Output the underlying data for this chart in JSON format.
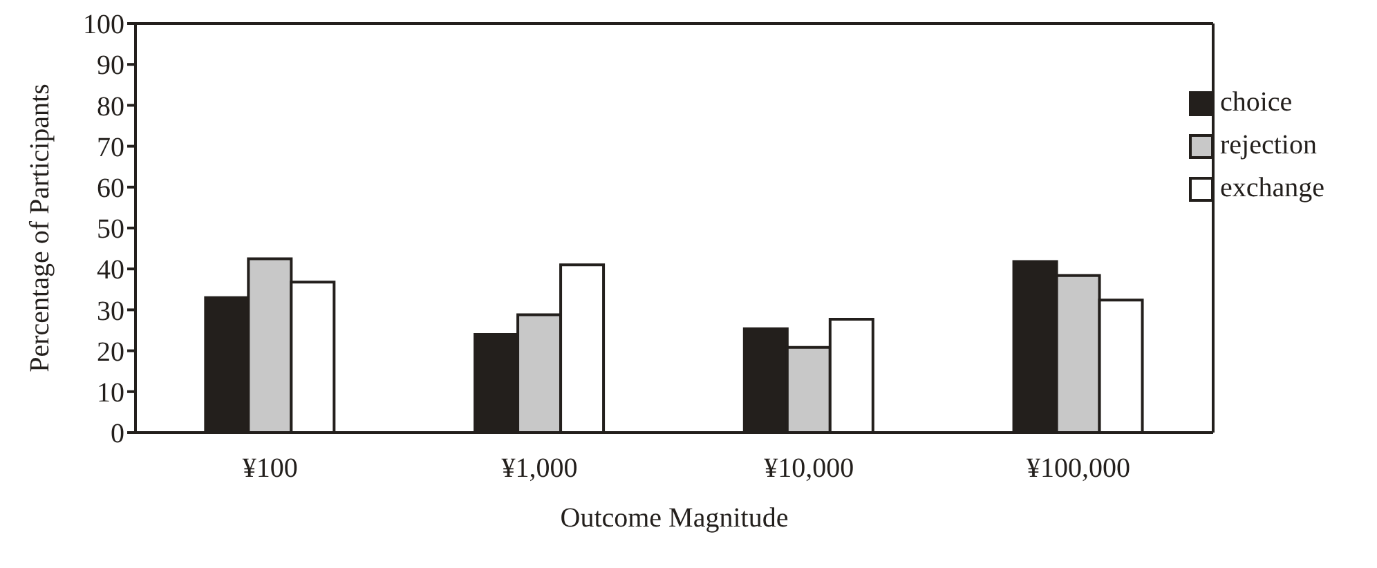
{
  "chart_data": {
    "type": "bar",
    "xlabel": "Outcome Magnitude",
    "ylabel": "Percentage of Participants",
    "categories": [
      "¥100",
      "¥1,000",
      "¥10,000",
      "¥100,000"
    ],
    "series": [
      {
        "name": "choice",
        "color": "#231f1c",
        "values": [
          33,
          24,
          25.4,
          41.8
        ]
      },
      {
        "name": "rejection",
        "color": "#c8c8c8",
        "values": [
          42.5,
          28.8,
          20.8,
          38.4
        ]
      },
      {
        "name": "exchange",
        "color": "#ffffff",
        "values": [
          36.8,
          41,
          27.7,
          32.4
        ]
      }
    ],
    "ylim": [
      0,
      100
    ],
    "yticks": [
      0,
      10,
      20,
      30,
      40,
      50,
      60,
      70,
      80,
      90,
      100
    ],
    "grid": false,
    "legend": "top right"
  }
}
